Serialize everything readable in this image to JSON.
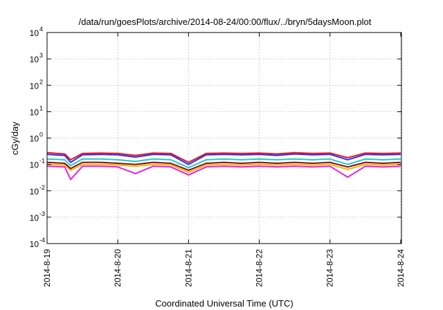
{
  "chart_data": {
    "type": "line",
    "title": "/data/run/goesPlots/archive/2014-08-24/00:00/flux/../bryn/5daysMoon.plot",
    "xlabel": "Coordinated Universal Time (UTC)",
    "ylabel": "cGy/day",
    "y_scale": "log",
    "ylim": [
      0.0001,
      10000
    ],
    "y_ticks": [
      {
        "base": "10",
        "exp": "-4",
        "value": 0.0001
      },
      {
        "base": "10",
        "exp": "-3",
        "value": 0.001
      },
      {
        "base": "10",
        "exp": "-2",
        "value": 0.01
      },
      {
        "base": "10",
        "exp": "-1",
        "value": 0.1
      },
      {
        "base": "10",
        "exp": "0",
        "value": 1
      },
      {
        "base": "10",
        "exp": "1",
        "value": 10
      },
      {
        "base": "10",
        "exp": "2",
        "value": 100
      },
      {
        "base": "10",
        "exp": "3",
        "value": 1000
      },
      {
        "base": "10",
        "exp": "4",
        "value": 10000
      }
    ],
    "xlim": [
      "2014-08-19 00:00",
      "2014-08-24 00:15"
    ],
    "x_ticks": [
      "2014-8-19",
      "2014-8-20",
      "2014-8-21",
      "2014-8-22",
      "2014-8-23",
      "2014-8-24"
    ],
    "grid": true,
    "legend": "none",
    "series": [
      {
        "color": "#e8141e",
        "values": [
          [
            "2014-08-19 00:00",
            0.28
          ],
          [
            "2014-08-19 06:00",
            0.25
          ],
          [
            "2014-08-19 08:00",
            0.15
          ],
          [
            "2014-08-19 12:00",
            0.26
          ],
          [
            "2014-08-19 18:00",
            0.27
          ],
          [
            "2014-08-20 00:00",
            0.26
          ],
          [
            "2014-08-20 06:00",
            0.22
          ],
          [
            "2014-08-20 12:00",
            0.27
          ],
          [
            "2014-08-20 18:00",
            0.26
          ],
          [
            "2014-08-21 00:00",
            0.12
          ],
          [
            "2014-08-21 06:00",
            0.26
          ],
          [
            "2014-08-21 12:00",
            0.27
          ],
          [
            "2014-08-21 18:00",
            0.26
          ],
          [
            "2014-08-22 00:00",
            0.27
          ],
          [
            "2014-08-22 06:00",
            0.25
          ],
          [
            "2014-08-22 12:00",
            0.28
          ],
          [
            "2014-08-22 18:00",
            0.26
          ],
          [
            "2014-08-23 00:00",
            0.27
          ],
          [
            "2014-08-23 06:00",
            0.18
          ],
          [
            "2014-08-23 12:00",
            0.27
          ],
          [
            "2014-08-23 18:00",
            0.26
          ],
          [
            "2014-08-24 00:00",
            0.27
          ]
        ]
      },
      {
        "color": "#2a2aff",
        "values": [
          [
            "2014-08-19 00:00",
            0.24
          ],
          [
            "2014-08-19 06:00",
            0.22
          ],
          [
            "2014-08-19 08:00",
            0.12
          ],
          [
            "2014-08-19 12:00",
            0.23
          ],
          [
            "2014-08-19 18:00",
            0.24
          ],
          [
            "2014-08-20 00:00",
            0.23
          ],
          [
            "2014-08-20 06:00",
            0.19
          ],
          [
            "2014-08-20 12:00",
            0.24
          ],
          [
            "2014-08-20 18:00",
            0.23
          ],
          [
            "2014-08-21 00:00",
            0.1
          ],
          [
            "2014-08-21 06:00",
            0.23
          ],
          [
            "2014-08-21 12:00",
            0.24
          ],
          [
            "2014-08-21 18:00",
            0.23
          ],
          [
            "2014-08-22 00:00",
            0.24
          ],
          [
            "2014-08-22 06:00",
            0.22
          ],
          [
            "2014-08-22 12:00",
            0.25
          ],
          [
            "2014-08-22 18:00",
            0.23
          ],
          [
            "2014-08-23 00:00",
            0.24
          ],
          [
            "2014-08-23 06:00",
            0.15
          ],
          [
            "2014-08-23 12:00",
            0.24
          ],
          [
            "2014-08-23 18:00",
            0.23
          ],
          [
            "2014-08-24 00:00",
            0.24
          ]
        ]
      },
      {
        "color": "#22c9c9",
        "values": [
          [
            "2014-08-19 00:00",
            0.16
          ],
          [
            "2014-08-19 06:00",
            0.15
          ],
          [
            "2014-08-19 08:00",
            0.09
          ],
          [
            "2014-08-19 12:00",
            0.16
          ],
          [
            "2014-08-19 18:00",
            0.16
          ],
          [
            "2014-08-20 00:00",
            0.15
          ],
          [
            "2014-08-20 06:00",
            0.13
          ],
          [
            "2014-08-20 12:00",
            0.16
          ],
          [
            "2014-08-20 18:00",
            0.15
          ],
          [
            "2014-08-21 00:00",
            0.075
          ],
          [
            "2014-08-21 06:00",
            0.15
          ],
          [
            "2014-08-21 12:00",
            0.16
          ],
          [
            "2014-08-21 18:00",
            0.15
          ],
          [
            "2014-08-22 00:00",
            0.16
          ],
          [
            "2014-08-22 06:00",
            0.15
          ],
          [
            "2014-08-22 12:00",
            0.16
          ],
          [
            "2014-08-22 18:00",
            0.15
          ],
          [
            "2014-08-23 00:00",
            0.16
          ],
          [
            "2014-08-23 06:00",
            0.1
          ],
          [
            "2014-08-23 12:00",
            0.16
          ],
          [
            "2014-08-23 18:00",
            0.15
          ],
          [
            "2014-08-24 00:00",
            0.16
          ]
        ]
      },
      {
        "color": "#8b0a0a",
        "values": [
          [
            "2014-08-19 00:00",
            0.12
          ],
          [
            "2014-08-19 06:00",
            0.11
          ],
          [
            "2014-08-19 08:00",
            0.07
          ],
          [
            "2014-08-19 12:00",
            0.12
          ],
          [
            "2014-08-19 18:00",
            0.12
          ],
          [
            "2014-08-20 00:00",
            0.11
          ],
          [
            "2014-08-20 06:00",
            0.1
          ],
          [
            "2014-08-20 12:00",
            0.12
          ],
          [
            "2014-08-20 18:00",
            0.11
          ],
          [
            "2014-08-21 00:00",
            0.06
          ],
          [
            "2014-08-21 06:00",
            0.11
          ],
          [
            "2014-08-21 12:00",
            0.12
          ],
          [
            "2014-08-21 18:00",
            0.11
          ],
          [
            "2014-08-22 00:00",
            0.12
          ],
          [
            "2014-08-22 06:00",
            0.11
          ],
          [
            "2014-08-22 12:00",
            0.12
          ],
          [
            "2014-08-22 18:00",
            0.11
          ],
          [
            "2014-08-23 00:00",
            0.12
          ],
          [
            "2014-08-23 06:00",
            0.08
          ],
          [
            "2014-08-23 12:00",
            0.12
          ],
          [
            "2014-08-23 18:00",
            0.11
          ],
          [
            "2014-08-24 00:00",
            0.12
          ]
        ]
      },
      {
        "color": "#f0b400",
        "values": [
          [
            "2014-08-19 00:00",
            0.1
          ],
          [
            "2014-08-19 06:00",
            0.095
          ],
          [
            "2014-08-19 08:00",
            0.06
          ],
          [
            "2014-08-19 12:00",
            0.1
          ],
          [
            "2014-08-19 18:00",
            0.1
          ],
          [
            "2014-08-20 00:00",
            0.095
          ],
          [
            "2014-08-20 06:00",
            0.085
          ],
          [
            "2014-08-20 12:00",
            0.1
          ],
          [
            "2014-08-20 18:00",
            0.095
          ],
          [
            "2014-08-21 00:00",
            0.05
          ],
          [
            "2014-08-21 06:00",
            0.095
          ],
          [
            "2014-08-21 12:00",
            0.1
          ],
          [
            "2014-08-21 18:00",
            0.095
          ],
          [
            "2014-08-22 00:00",
            0.1
          ],
          [
            "2014-08-22 06:00",
            0.095
          ],
          [
            "2014-08-22 12:00",
            0.1
          ],
          [
            "2014-08-22 18:00",
            0.095
          ],
          [
            "2014-08-23 00:00",
            0.1
          ],
          [
            "2014-08-23 06:00",
            0.065
          ],
          [
            "2014-08-23 12:00",
            0.1
          ],
          [
            "2014-08-23 18:00",
            0.095
          ],
          [
            "2014-08-24 00:00",
            0.1
          ]
        ]
      },
      {
        "color": "#e81ee8",
        "values": [
          [
            "2014-08-19 00:00",
            0.085
          ],
          [
            "2014-08-19 06:00",
            0.08
          ],
          [
            "2014-08-19 08:00",
            0.027
          ],
          [
            "2014-08-19 12:00",
            0.085
          ],
          [
            "2014-08-19 18:00",
            0.085
          ],
          [
            "2014-08-20 00:00",
            0.08
          ],
          [
            "2014-08-20 06:00",
            0.045
          ],
          [
            "2014-08-20 12:00",
            0.085
          ],
          [
            "2014-08-20 18:00",
            0.08
          ],
          [
            "2014-08-21 00:00",
            0.04
          ],
          [
            "2014-08-21 06:00",
            0.08
          ],
          [
            "2014-08-21 12:00",
            0.085
          ],
          [
            "2014-08-21 18:00",
            0.08
          ],
          [
            "2014-08-22 00:00",
            0.085
          ],
          [
            "2014-08-22 06:00",
            0.08
          ],
          [
            "2014-08-22 12:00",
            0.085
          ],
          [
            "2014-08-22 18:00",
            0.08
          ],
          [
            "2014-08-23 00:00",
            0.085
          ],
          [
            "2014-08-23 06:00",
            0.033
          ],
          [
            "2014-08-23 12:00",
            0.085
          ],
          [
            "2014-08-23 18:00",
            0.08
          ],
          [
            "2014-08-24 00:00",
            0.085
          ]
        ]
      }
    ]
  }
}
